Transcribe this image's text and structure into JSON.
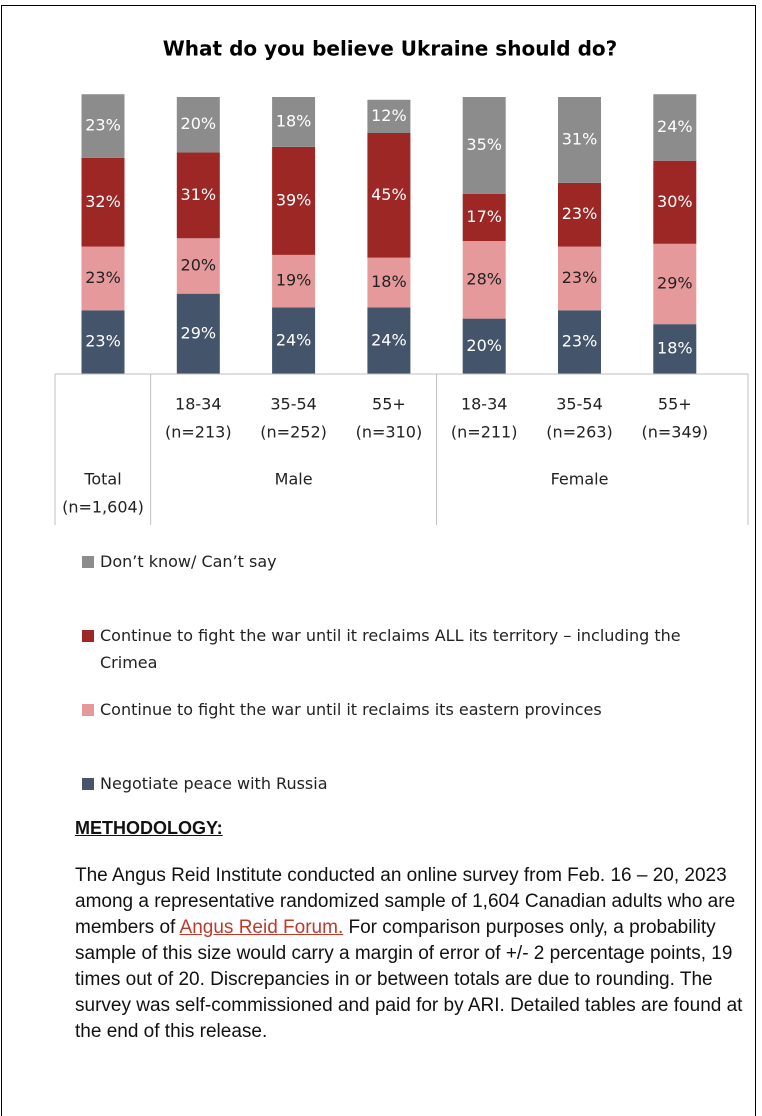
{
  "chart_data": {
    "type": "stacked_bar",
    "title": "What do you believe Ukraine should do?",
    "categories": [
      [
        "Total",
        "(n=1,604)"
      ],
      [
        "18-34",
        "(n=213)"
      ],
      [
        "35-54",
        "(n=252)"
      ],
      [
        "55+",
        "(n=310)"
      ],
      [
        "18-34",
        "(n=211)"
      ],
      [
        "35-54",
        "(n=263)"
      ],
      [
        "55+",
        "(n=349)"
      ]
    ],
    "category_groups": [
      null,
      "Male",
      "Male",
      "Male",
      "Female",
      "Female",
      "Female"
    ],
    "ylim": [
      0,
      100
    ],
    "series": [
      {
        "name": "Negotiate peace with Russia",
        "color": "#44546a",
        "label_color": "#ffffff",
        "values": [
          23,
          29,
          24,
          24,
          20,
          23,
          18
        ],
        "value_labels": [
          "23%",
          "29%",
          "24%",
          "24%",
          "20%",
          "23%",
          "18%"
        ]
      },
      {
        "name": "Continue to fight the war until it reclaims its eastern provinces",
        "color": "#e6999b",
        "label_color": "#222222",
        "values": [
          23,
          20,
          19,
          18,
          28,
          23,
          29
        ],
        "value_labels": [
          "23%",
          "20%",
          "19%",
          "18%",
          "28%",
          "23%",
          "29%"
        ]
      },
      {
        "name": "Continue to fight the war until it reclaims ALL its territory – including the Crimea",
        "color": "#9c2725",
        "label_color": "#ffffff",
        "values": [
          32,
          31,
          39,
          45,
          17,
          23,
          30
        ],
        "value_labels": [
          "32%",
          "31%",
          "39%",
          "45%",
          "17%",
          "23%",
          "30%"
        ]
      },
      {
        "name": "Don’t know/ Can’t say",
        "color": "#8c8c8c",
        "label_color": "#ffffff",
        "values": [
          23,
          20,
          18,
          12,
          35,
          31,
          24
        ],
        "value_labels": [
          "23%",
          "20%",
          "18%",
          "12%",
          "35%",
          "31%",
          "24%"
        ]
      }
    ]
  },
  "methodology": {
    "heading": "METHODOLOGY:",
    "text_before": "The Angus Reid Institute conducted an online survey from Feb. 16 – 20, 2023 among a representative randomized sample of 1,604 Canadian adults who are members of ",
    "link": "Angus Reid Forum.",
    "text_after": " For comparison purposes only, a probability sample of this size would carry a margin of error of +/- 2 percentage points, 19 times out of 20. Discrepancies in or between totals are due to rounding. The survey was self-commissioned and paid for by ARI. Detailed tables are found at the end of this release."
  }
}
